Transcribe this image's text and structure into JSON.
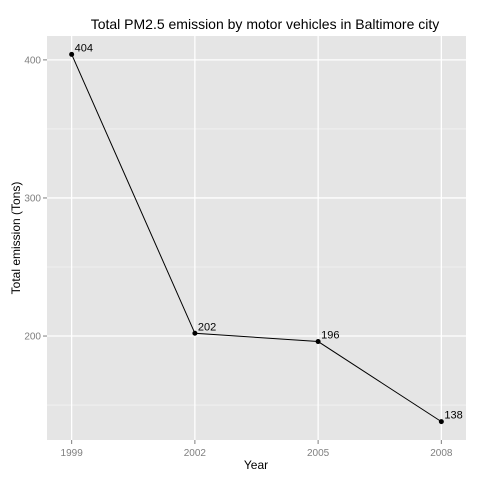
{
  "chart_data": {
    "type": "line",
    "title": "Total PM2.5 emission by motor vehicles in Baltimore city",
    "xlabel": "Year",
    "ylabel": "Total emission (Tons)",
    "categories": [
      "1999",
      "2002",
      "2005",
      "2008"
    ],
    "x": [
      1999,
      2002,
      2005,
      2008
    ],
    "series": [
      {
        "values": [
          404,
          202,
          196,
          138
        ]
      }
    ],
    "data_labels": [
      "404",
      "202",
      "196",
      "138"
    ],
    "x_ticks": [
      "1999",
      "2002",
      "2005",
      "2008"
    ],
    "y_ticks": [
      200,
      300,
      400
    ],
    "y_tick_labels": [
      "200",
      "300",
      "400"
    ],
    "xlim": [
      1998.4,
      2008.6
    ],
    "ylim": [
      124.7,
      417.3
    ],
    "grid": true,
    "legend": "none",
    "colors": {
      "panel": "#e5e5e5",
      "grid_major": "#ffffff",
      "grid_minor": "#f2f2f2",
      "line": "#000000",
      "point": "#000000",
      "tick_text": "#7f7f7f",
      "label_text": "#000000"
    }
  }
}
